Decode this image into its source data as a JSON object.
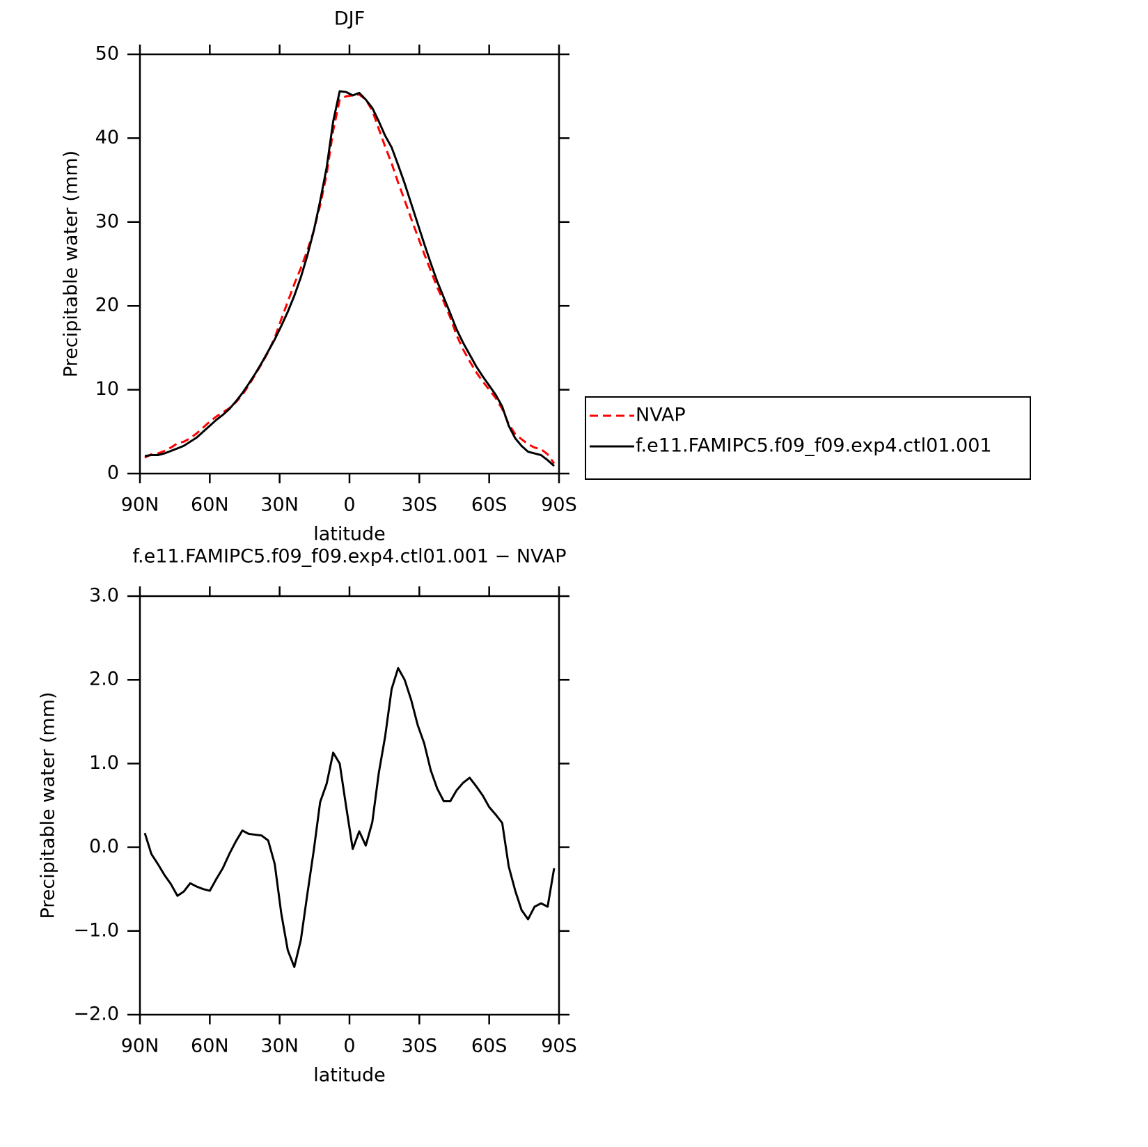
{
  "chart_data": [
    {
      "type": "line",
      "title": "DJF",
      "xlabel": "latitude",
      "ylabel": "Precipitable water (mm)",
      "x": [
        87.9,
        85.1,
        82.3,
        79.5,
        76.7,
        73.9,
        71.2,
        68.4,
        65.6,
        62.8,
        60.0,
        57.2,
        54.4,
        51.6,
        48.8,
        46.0,
        43.3,
        40.5,
        37.7,
        34.9,
        32.1,
        29.3,
        26.5,
        23.7,
        20.9,
        18.1,
        15.3,
        12.6,
        9.8,
        7.0,
        4.2,
        1.4,
        -1.4,
        -4.2,
        -7.0,
        -9.8,
        -12.6,
        -15.3,
        -18.1,
        -20.9,
        -23.7,
        -26.5,
        -29.3,
        -32.1,
        -34.9,
        -37.7,
        -40.5,
        -43.3,
        -46.0,
        -48.8,
        -51.6,
        -54.4,
        -57.2,
        -60.0,
        -62.8,
        -65.6,
        -68.4,
        -71.2,
        -73.9,
        -76.7,
        -79.5,
        -82.3,
        -85.1,
        -87.9
      ],
      "series": [
        {
          "name": "NVAP",
          "color": "#ff0000",
          "line_style": "dashed",
          "values": [
            1.9,
            2.3,
            2.4,
            2.7,
            3.1,
            3.6,
            3.8,
            4.2,
            4.8,
            5.5,
            6.2,
            6.8,
            7.3,
            7.8,
            8.5,
            9.4,
            10.5,
            11.8,
            13.1,
            14.5,
            16.2,
            18.4,
            20.5,
            22.6,
            24.5,
            26.6,
            29.0,
            32.0,
            35.7,
            40.9,
            44.6,
            45.0,
            45.1,
            45.2,
            44.6,
            43.3,
            41.1,
            39.0,
            37.0,
            34.7,
            32.6,
            30.4,
            28.3,
            26.2,
            24.2,
            22.2,
            20.5,
            18.6,
            16.5,
            14.8,
            13.4,
            12.1,
            11.0,
            10.0,
            9.0,
            7.7,
            5.9,
            4.7,
            4.1,
            3.5,
            3.1,
            2.9,
            2.3,
            1.2
          ]
        },
        {
          "name": "f.e11.FAMIPC5.f09_f09.exp4.ctl01.001",
          "color": "#000000",
          "line_style": "solid",
          "values": [
            2.1,
            2.2,
            2.2,
            2.4,
            2.7,
            3.0,
            3.3,
            3.8,
            4.3,
            5.0,
            5.7,
            6.4,
            7.0,
            7.7,
            8.6,
            9.6,
            10.7,
            11.9,
            13.2,
            14.6,
            16.0,
            17.6,
            19.3,
            21.2,
            23.4,
            26.0,
            29.0,
            32.5,
            36.5,
            42.0,
            45.6,
            45.5,
            45.1,
            45.4,
            44.6,
            43.6,
            42.0,
            40.3,
            38.9,
            36.8,
            34.6,
            32.2,
            29.8,
            27.4,
            25.1,
            22.9,
            21.0,
            19.1,
            17.2,
            15.6,
            14.2,
            12.8,
            11.6,
            10.5,
            9.4,
            8.0,
            5.7,
            4.2,
            3.3,
            2.6,
            2.4,
            2.2,
            1.6,
            0.9
          ]
        }
      ],
      "xlim": [
        90,
        -90
      ],
      "xticks": [
        {
          "value": 90,
          "label": "90N"
        },
        {
          "value": 60,
          "label": "60N"
        },
        {
          "value": 30,
          "label": "30N"
        },
        0,
        {
          "value": -30,
          "label": "30S"
        },
        {
          "value": -60,
          "label": "60S"
        },
        {
          "value": -90,
          "label": "90S"
        }
      ],
      "ylim": [
        0,
        50
      ],
      "yticks": [
        0,
        10,
        20,
        30,
        40,
        50
      ],
      "legend": "right"
    },
    {
      "type": "line",
      "title": "f.e11.FAMIPC5.f09_f09.exp4.ctl01.001 − NVAP",
      "xlabel": "latitude",
      "ylabel": "Precipitable water (mm)",
      "x": [
        87.9,
        85.1,
        82.3,
        79.5,
        76.7,
        73.9,
        71.2,
        68.4,
        65.6,
        62.8,
        60.0,
        57.2,
        54.4,
        51.6,
        48.8,
        46.0,
        43.3,
        40.5,
        37.7,
        34.9,
        32.1,
        29.3,
        26.5,
        23.7,
        20.9,
        18.1,
        15.3,
        12.6,
        9.8,
        7.0,
        4.2,
        1.4,
        -1.4,
        -4.2,
        -7.0,
        -9.8,
        -12.6,
        -15.3,
        -18.1,
        -20.9,
        -23.7,
        -26.5,
        -29.3,
        -32.1,
        -34.9,
        -37.7,
        -40.5,
        -43.3,
        -46.0,
        -48.8,
        -51.6,
        -54.4,
        -57.2,
        -60.0,
        -62.8,
        -65.6,
        -68.4,
        -71.2,
        -73.9,
        -76.7,
        -79.5,
        -82.3,
        -85.1,
        -87.9
      ],
      "color": "#000000",
      "values": [
        0.17,
        -0.08,
        -0.2,
        -0.33,
        -0.44,
        -0.58,
        -0.53,
        -0.43,
        -0.47,
        -0.5,
        -0.52,
        -0.38,
        -0.25,
        -0.08,
        0.07,
        0.2,
        0.16,
        0.15,
        0.14,
        0.08,
        -0.2,
        -0.79,
        -1.23,
        -1.43,
        -1.11,
        -0.56,
        -0.03,
        0.54,
        0.76,
        1.13,
        1.0,
        0.48,
        -0.02,
        0.19,
        0.02,
        0.3,
        0.89,
        1.32,
        1.89,
        2.14,
        2.0,
        1.76,
        1.46,
        1.24,
        0.92,
        0.7,
        0.55,
        0.55,
        0.68,
        0.77,
        0.83,
        0.73,
        0.62,
        0.48,
        0.39,
        0.29,
        -0.23,
        -0.52,
        -0.75,
        -0.86,
        -0.71,
        -0.67,
        -0.71,
        -0.25
      ],
      "xlim": [
        90,
        -90
      ],
      "xticks": [
        {
          "value": 90,
          "label": "90N"
        },
        {
          "value": 60,
          "label": "60N"
        },
        {
          "value": 30,
          "label": "30N"
        },
        0,
        {
          "value": -30,
          "label": "30S"
        },
        {
          "value": -60,
          "label": "60S"
        },
        {
          "value": -90,
          "label": "90S"
        }
      ],
      "ylim": [
        -2,
        3
      ],
      "yticks": [
        {
          "value": -2,
          "label": "−2.0"
        },
        {
          "value": -1,
          "label": "−1.0"
        },
        {
          "value": 0,
          "label": "0.0"
        },
        {
          "value": 1,
          "label": "1.0"
        },
        {
          "value": 2,
          "label": "2.0"
        },
        {
          "value": 3,
          "label": "3.0"
        }
      ]
    }
  ]
}
